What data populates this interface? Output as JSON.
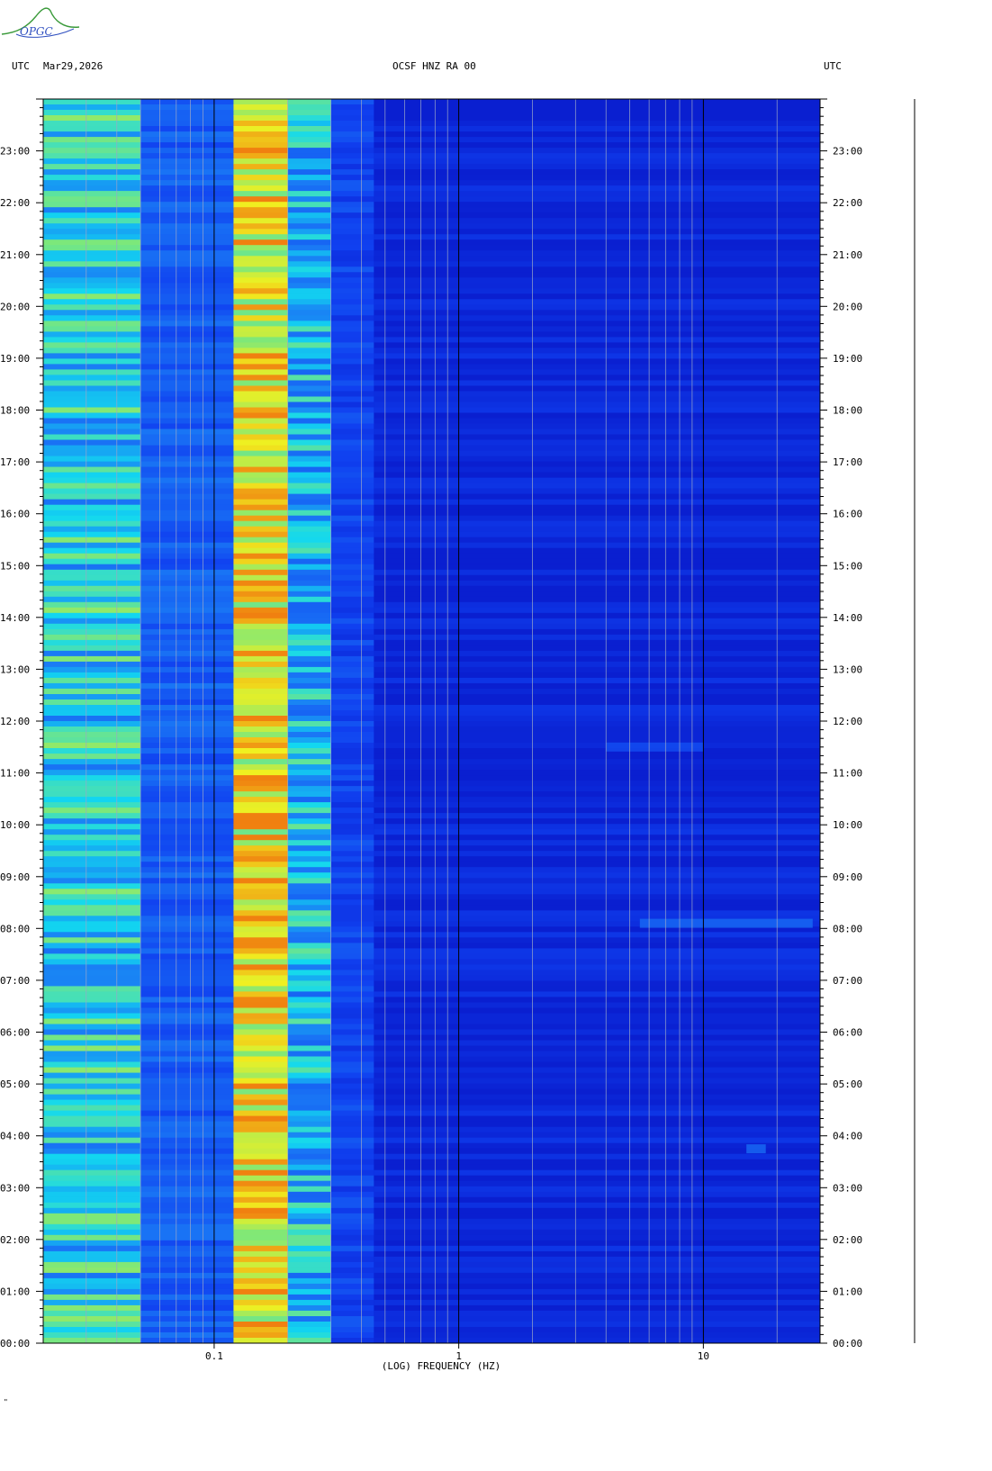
{
  "header": {
    "left_tz": "UTC",
    "date": "Mar29,2026",
    "station": "OCSF HNZ RA 00",
    "right_tz": "UTC"
  },
  "logo": {
    "text": "OPGC"
  },
  "footer_mark": "\"",
  "colors": {
    "background_blue": "#0a1fd0",
    "low_blue": "#1040f0",
    "mid_blue": "#1a6cf5",
    "cyan": "#12d8f0",
    "green": "#7fe878",
    "yellow": "#f0f020",
    "orange": "#f08010",
    "logo_green": "#3a9a3a",
    "logo_blue": "#3050c0"
  },
  "chart_data": {
    "type": "heatmap",
    "title": "OCSF HNZ RA 00",
    "xlabel": "(LOG) FREQUENCY (HZ)",
    "ylabel": "UTC",
    "x_scale": "log",
    "xlim": [
      0.02,
      30
    ],
    "x_ticks": [
      {
        "value": 0.1,
        "label": "0.1"
      },
      {
        "value": 1,
        "label": "1"
      },
      {
        "value": 10,
        "label": "10"
      }
    ],
    "x_gridlines": [
      0.03,
      0.04,
      0.05,
      0.06,
      0.07,
      0.08,
      0.09,
      0.1,
      0.2,
      0.3,
      0.4,
      0.5,
      0.6,
      0.7,
      0.8,
      0.9,
      1,
      2,
      3,
      4,
      5,
      6,
      7,
      8,
      9,
      10,
      20
    ],
    "ylim_hours": [
      0,
      24
    ],
    "y_ticks": [
      "00:00",
      "01:00",
      "02:00",
      "03:00",
      "04:00",
      "05:00",
      "06:00",
      "07:00",
      "08:00",
      "09:00",
      "10:00",
      "11:00",
      "12:00",
      "13:00",
      "14:00",
      "15:00",
      "16:00",
      "17:00",
      "18:00",
      "19:00",
      "20:00",
      "21:00",
      "22:00",
      "23:00"
    ],
    "energy_bands": [
      {
        "f_min": 0.02,
        "f_max": 0.05,
        "level": 0.55
      },
      {
        "f_min": 0.05,
        "f_max": 0.12,
        "level": 0.3
      },
      {
        "f_min": 0.12,
        "f_max": 0.2,
        "level": 0.85
      },
      {
        "f_min": 0.2,
        "f_max": 0.3,
        "level": 0.5
      },
      {
        "f_min": 0.3,
        "f_max": 0.45,
        "level": 0.2
      },
      {
        "f_min": 0.45,
        "f_max": 30,
        "level": 0.05
      }
    ],
    "events": [
      {
        "time_hours": 8.1,
        "f_min": 5.5,
        "f_max": 28,
        "level": 0.35
      },
      {
        "time_hours": 11.5,
        "f_min": 4,
        "f_max": 10,
        "level": 0.25
      },
      {
        "time_hours": 3.75,
        "f_min": 15,
        "f_max": 18,
        "level": 0.35
      }
    ]
  }
}
